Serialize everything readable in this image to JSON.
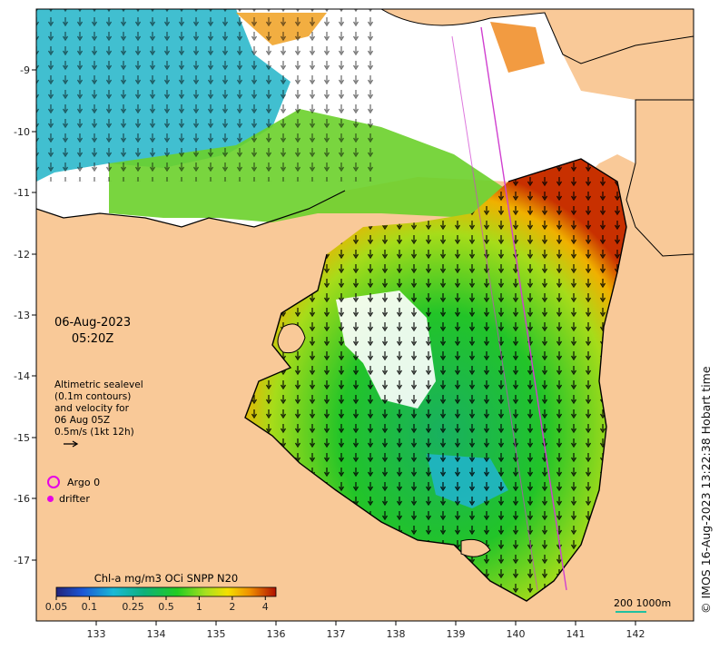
{
  "map": {
    "date": "06-Aug-2023",
    "time": "05:20Z",
    "legend_lines": [
      "Altimetric sealevel",
      "(0.1m contours)",
      "and velocity for",
      "06 Aug 05Z",
      "0.5m/s (1kt 12h)"
    ],
    "argo_label": "Argo 0",
    "drifter_label": "drifter",
    "colorbar": {
      "title": "Chl-a mg/m3 OCi SNPP N20",
      "tick_labels": [
        "0.05",
        "0.1",
        "0.25",
        "0.5",
        "1",
        "2",
        "4"
      ],
      "tick_values": [
        0.05,
        0.1,
        0.25,
        0.5,
        1,
        2,
        4
      ],
      "log_scale": true,
      "range": [
        0.05,
        5
      ]
    },
    "scale_bar_label": "200  1000m",
    "credit": "© IMOS 16-Aug-2023 13:22:38 Hobart time",
    "lon_ticks": [
      "133",
      "134",
      "135",
      "136",
      "137",
      "138",
      "139",
      "140",
      "141",
      "142"
    ],
    "lat_ticks": [
      "-9",
      "-10",
      "-11",
      "-12",
      "-13",
      "-14",
      "-15",
      "-16",
      "-17"
    ],
    "colors": {
      "land": "#f9c998",
      "coast": "#000000",
      "argo": "#e600e6",
      "track": "#d040d0",
      "scale_bar": "#20c0a0"
    }
  }
}
